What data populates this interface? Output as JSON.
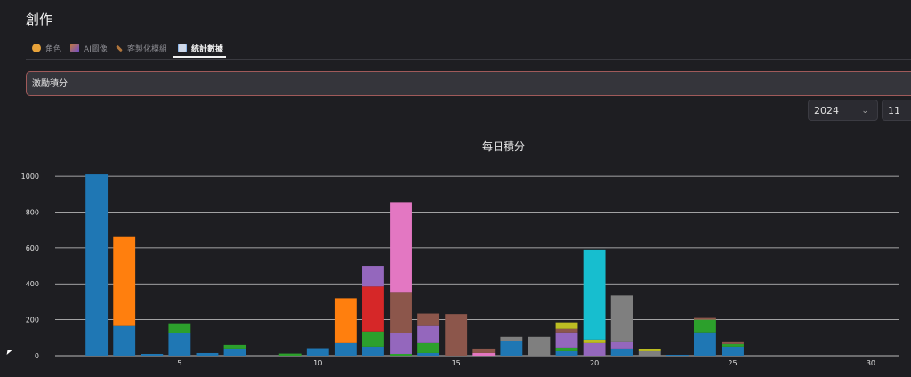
{
  "page": {
    "title": "創作"
  },
  "tabs": [
    {
      "label": "角色",
      "icon": "hand-icon",
      "color": "#e8a33a"
    },
    {
      "label": "AI圖像",
      "icon": "picture-icon",
      "color": "#c77b3a"
    },
    {
      "label": "客製化模組",
      "icon": "hammer-icon",
      "color": "#b0753c"
    },
    {
      "label": "統計數據",
      "icon": "chart-icon",
      "color": "#8ab4e8",
      "active": true
    }
  ],
  "banner": {
    "text": "激勵積分"
  },
  "filters": {
    "year": "2024",
    "month": "11"
  },
  "chart_data": {
    "type": "bar",
    "stacked": true,
    "title": "每日積分",
    "xlabel": "",
    "ylabel": "",
    "ylim": [
      0,
      1050
    ],
    "xlim": [
      0.5,
      31
    ],
    "x_ticks": [
      5,
      10,
      15,
      20,
      25,
      30
    ],
    "y_ticks": [
      0,
      200,
      400,
      600,
      800,
      1000
    ],
    "grid": "horizontal",
    "colors": [
      "#1f77b4",
      "#ff7f0e",
      "#2ca02c",
      "#d62728",
      "#9467bd",
      "#8c564b",
      "#e377c2",
      "#7f7f7f",
      "#bcbd22",
      "#17becf"
    ],
    "stacks": [
      {
        "day": 2,
        "segments": [
          [
            0,
            1010
          ]
        ]
      },
      {
        "day": 3,
        "segments": [
          [
            0,
            165
          ],
          [
            1,
            500
          ]
        ]
      },
      {
        "day": 4,
        "segments": [
          [
            0,
            10
          ]
        ]
      },
      {
        "day": 5,
        "segments": [
          [
            0,
            125
          ],
          [
            2,
            55
          ]
        ]
      },
      {
        "day": 6,
        "segments": [
          [
            0,
            15
          ]
        ]
      },
      {
        "day": 7,
        "segments": [
          [
            0,
            40
          ],
          [
            2,
            20
          ]
        ]
      },
      {
        "day": 9,
        "segments": [
          [
            2,
            12
          ]
        ]
      },
      {
        "day": 10,
        "segments": [
          [
            0,
            42
          ]
        ]
      },
      {
        "day": 11,
        "segments": [
          [
            0,
            70
          ],
          [
            1,
            250
          ]
        ]
      },
      {
        "day": 12,
        "segments": [
          [
            0,
            50
          ],
          [
            2,
            85
          ],
          [
            3,
            250
          ],
          [
            4,
            115
          ]
        ]
      },
      {
        "day": 13,
        "segments": [
          [
            2,
            10
          ],
          [
            4,
            115
          ],
          [
            5,
            230
          ],
          [
            6,
            500
          ]
        ]
      },
      {
        "day": 14,
        "segments": [
          [
            0,
            15
          ],
          [
            2,
            55
          ],
          [
            4,
            95
          ],
          [
            5,
            70
          ]
        ]
      },
      {
        "day": 15,
        "segments": [
          [
            5,
            232
          ]
        ]
      },
      {
        "day": 16,
        "segments": [
          [
            6,
            15
          ],
          [
            5,
            25
          ]
        ]
      },
      {
        "day": 17,
        "segments": [
          [
            0,
            80
          ],
          [
            7,
            25
          ]
        ]
      },
      {
        "day": 18,
        "segments": [
          [
            7,
            105
          ]
        ]
      },
      {
        "day": 19,
        "segments": [
          [
            0,
            25
          ],
          [
            2,
            20
          ],
          [
            4,
            85
          ],
          [
            5,
            20
          ],
          [
            8,
            35
          ]
        ]
      },
      {
        "day": 20,
        "segments": [
          [
            4,
            70
          ],
          [
            8,
            20
          ],
          [
            9,
            500
          ]
        ]
      },
      {
        "day": 21,
        "segments": [
          [
            0,
            40
          ],
          [
            4,
            35
          ],
          [
            7,
            260
          ]
        ]
      },
      {
        "day": 22,
        "segments": [
          [
            7,
            25
          ],
          [
            8,
            10
          ]
        ]
      },
      {
        "day": 23,
        "segments": [
          [
            0,
            5
          ]
        ]
      },
      {
        "day": 24,
        "segments": [
          [
            0,
            130
          ],
          [
            2,
            70
          ],
          [
            5,
            10
          ]
        ]
      },
      {
        "day": 25,
        "segments": [
          [
            0,
            50
          ],
          [
            2,
            15
          ],
          [
            5,
            10
          ]
        ]
      }
    ]
  }
}
